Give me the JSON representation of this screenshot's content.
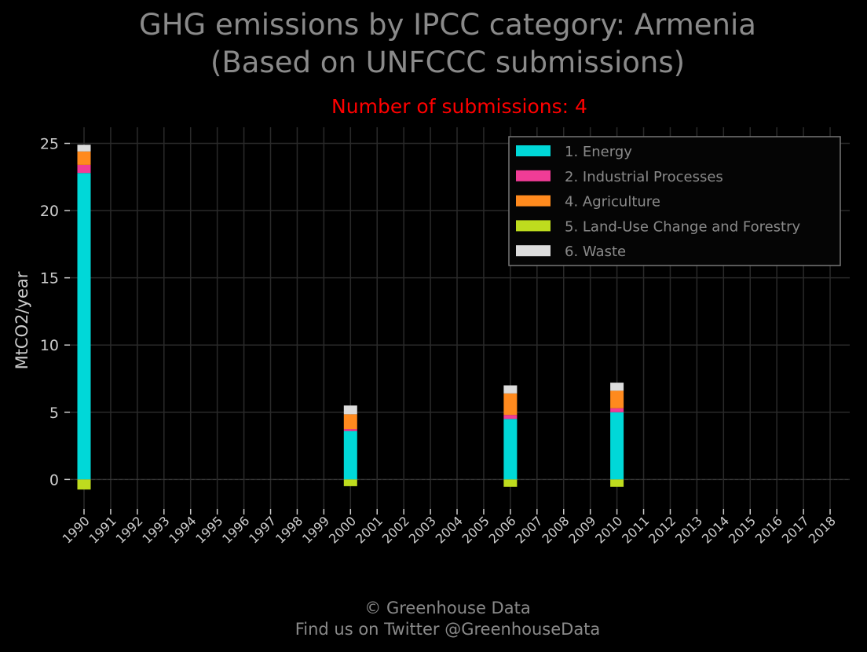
{
  "title_line1": "GHG emissions by IPCC category: Armenia",
  "title_line2": "(Based on UNFCCC submissions)",
  "subtitle": "Number of submissions: 4",
  "footer_line1": "© Greenhouse Data",
  "footer_line2": "Find us on Twitter @GreenhouseData",
  "chart_data": {
    "type": "bar",
    "stacked": true,
    "ylabel": "MtCO2/year",
    "xlabel": "",
    "ylim": [
      -2.2,
      26.2
    ],
    "yticks": [
      0,
      5,
      10,
      15,
      20,
      25
    ],
    "grid": true,
    "legend_position": "top-right",
    "categories": [
      "1990",
      "1991",
      "1992",
      "1993",
      "1994",
      "1995",
      "1996",
      "1997",
      "1998",
      "1999",
      "2000",
      "2001",
      "2002",
      "2003",
      "2004",
      "2005",
      "2006",
      "2007",
      "2008",
      "2009",
      "2010",
      "2011",
      "2012",
      "2013",
      "2014",
      "2015",
      "2016",
      "2017",
      "2018"
    ],
    "series": [
      {
        "name": "1. Energy",
        "color": "#00d8d8",
        "values": [
          22.8,
          0,
          0,
          0,
          0,
          0,
          0,
          0,
          0,
          0,
          3.6,
          0,
          0,
          0,
          0,
          0,
          4.5,
          0,
          0,
          0,
          5.0,
          0,
          0,
          0,
          0,
          0,
          0,
          0,
          0
        ]
      },
      {
        "name": "2. Industrial Processes",
        "color": "#f03c96",
        "values": [
          0.6,
          0,
          0,
          0,
          0,
          0,
          0,
          0,
          0,
          0,
          0.15,
          0,
          0,
          0,
          0,
          0,
          0.3,
          0,
          0,
          0,
          0.3,
          0,
          0,
          0,
          0,
          0,
          0,
          0,
          0
        ]
      },
      {
        "name": "4. Agriculture",
        "color": "#ff8a1e",
        "values": [
          1.0,
          0,
          0,
          0,
          0,
          0,
          0,
          0,
          0,
          0,
          1.1,
          0,
          0,
          0,
          0,
          0,
          1.6,
          0,
          0,
          0,
          1.3,
          0,
          0,
          0,
          0,
          0,
          0,
          0,
          0
        ]
      },
      {
        "name": "5. Land-Use Change and Forestry",
        "color": "#bedc1e",
        "values": [
          -0.75,
          0,
          0,
          0,
          0,
          0,
          0,
          0,
          0,
          0,
          -0.5,
          0,
          0,
          0,
          0,
          0,
          -0.55,
          0,
          0,
          0,
          -0.55,
          0,
          0,
          0,
          0,
          0,
          0,
          0,
          0
        ]
      },
      {
        "name": "6. Waste",
        "color": "#dcdcdc",
        "values": [
          0.5,
          0,
          0,
          0,
          0,
          0,
          0,
          0,
          0,
          0,
          0.65,
          0,
          0,
          0,
          0,
          0,
          0.6,
          0,
          0,
          0,
          0.6,
          0,
          0,
          0,
          0,
          0,
          0,
          0,
          0
        ]
      }
    ]
  }
}
